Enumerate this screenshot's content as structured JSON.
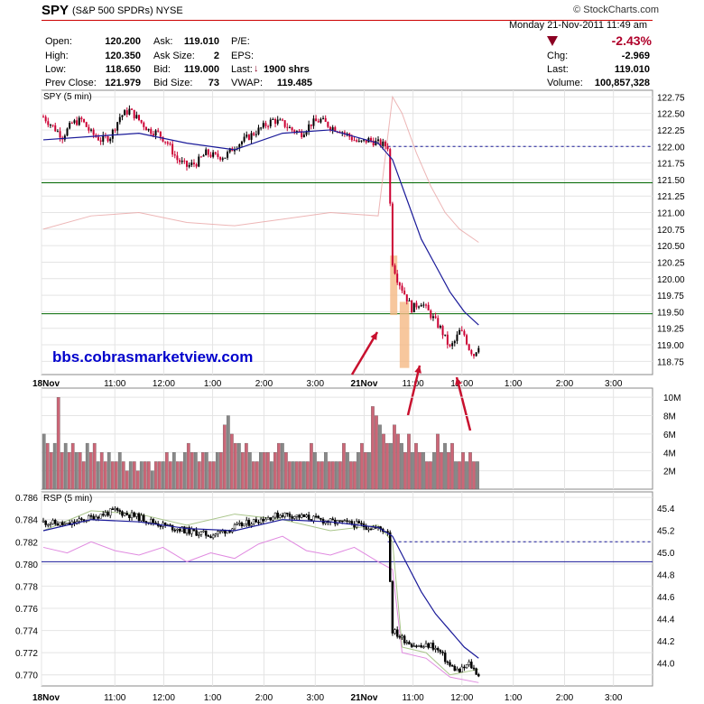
{
  "header": {
    "symbol": "SPY",
    "description": "(S&P 500 SPDRs)",
    "exchange": "NYSE",
    "brand": "© StockCharts.com",
    "date": "Monday  21-Nov-2011  11:49 am",
    "change_pct": "-2.43%",
    "quotes": {
      "open": {
        "label": "Open:",
        "value": "120.200"
      },
      "high": {
        "label": "High:",
        "value": "120.350"
      },
      "low": {
        "label": "Low:",
        "value": "118.650"
      },
      "prev_close": {
        "label": "Prev Close:",
        "value": "121.979"
      },
      "ask": {
        "label": "Ask:",
        "value": "119.010"
      },
      "ask_size": {
        "label": "Ask Size:",
        "value": "2"
      },
      "bid": {
        "label": "Bid:",
        "value": "119.000"
      },
      "bid_size": {
        "label": "Bid Size:",
        "value": "73"
      },
      "pe": {
        "label": "P/E:",
        "value": ""
      },
      "eps": {
        "label": "EPS:",
        "value": ""
      },
      "last_trade": {
        "label": "Last:",
        "value": "1900 shrs"
      },
      "vwap": {
        "label": "VWAP:",
        "value": "119.485"
      },
      "chg": {
        "label": "Chg:",
        "value": "-2.969"
      },
      "last": {
        "label": "Last:",
        "value": "119.010"
      },
      "volume": {
        "label": "Volume:",
        "value": "100,857,328"
      }
    }
  },
  "watermark": "bbs.cobrasmarketview.com",
  "colors": {
    "down": "#cc0033",
    "up": "#000000",
    "ma": "#1a1a99",
    "reference": "#006600",
    "highlight": "#f5b985",
    "arrow": "#c8102e"
  },
  "chart_data": [
    {
      "type": "candlestick",
      "title": "SPY (5 min)",
      "x_ticks": [
        "18Nov",
        "11:00",
        "12:00",
        "1:00",
        "2:00",
        "3:00",
        "21Nov",
        "11:00",
        "12:00",
        "1:00",
        "2:00",
        "3:00"
      ],
      "y_ticks": [
        "122.75",
        "122.50",
        "122.25",
        "122.00",
        "121.75",
        "121.50",
        "121.25",
        "121.00",
        "120.75",
        "120.50",
        "120.25",
        "120.00",
        "119.75",
        "119.50",
        "119.25",
        "119.00",
        "118.75"
      ],
      "ylim": [
        118.55,
        122.85
      ],
      "reference_lines": [
        122.0,
        121.45,
        119.47
      ],
      "close_path": [
        [
          0,
          122.45
        ],
        [
          4,
          122.3
        ],
        [
          8,
          122.15
        ],
        [
          12,
          122.35
        ],
        [
          16,
          122.4
        ],
        [
          20,
          122.2
        ],
        [
          24,
          122.1
        ],
        [
          28,
          122.15
        ],
        [
          32,
          122.45
        ],
        [
          36,
          122.55
        ],
        [
          40,
          122.4
        ],
        [
          44,
          122.25
        ],
        [
          48,
          122.2
        ],
        [
          52,
          122.05
        ],
        [
          56,
          121.8
        ],
        [
          60,
          121.7
        ],
        [
          64,
          121.75
        ],
        [
          68,
          121.9
        ],
        [
          72,
          121.85
        ],
        [
          76,
          121.85
        ],
        [
          80,
          122.0
        ],
        [
          84,
          122.1
        ],
        [
          88,
          122.2
        ],
        [
          92,
          122.3
        ],
        [
          96,
          122.4
        ],
        [
          100,
          122.35
        ],
        [
          104,
          122.25
        ],
        [
          108,
          122.2
        ],
        [
          112,
          122.35
        ],
        [
          116,
          122.4
        ],
        [
          120,
          122.3
        ],
        [
          124,
          122.25
        ],
        [
          128,
          122.15
        ],
        [
          132,
          122.05
        ],
        [
          136,
          122.1
        ],
        [
          140,
          122.05
        ],
        [
          144,
          122.0
        ],
        [
          146,
          120.25
        ],
        [
          148,
          120.0
        ],
        [
          150,
          119.85
        ],
        [
          152,
          119.7
        ],
        [
          154,
          119.55
        ],
        [
          156,
          119.6
        ],
        [
          158,
          119.65
        ],
        [
          160,
          119.55
        ],
        [
          162,
          119.45
        ],
        [
          164,
          119.35
        ],
        [
          166,
          119.25
        ],
        [
          168,
          119.1
        ],
        [
          170,
          118.95
        ],
        [
          172,
          119.05
        ],
        [
          174,
          119.2
        ],
        [
          176,
          119.15
        ],
        [
          178,
          118.95
        ],
        [
          180,
          118.85
        ],
        [
          182,
          119.0
        ]
      ],
      "ma_path": [
        [
          0,
          122.1
        ],
        [
          20,
          122.15
        ],
        [
          40,
          122.2
        ],
        [
          60,
          122.05
        ],
        [
          80,
          121.95
        ],
        [
          100,
          122.2
        ],
        [
          120,
          122.25
        ],
        [
          140,
          122.05
        ],
        [
          146,
          121.8
        ],
        [
          152,
          121.2
        ],
        [
          158,
          120.6
        ],
        [
          164,
          120.2
        ],
        [
          170,
          119.8
        ],
        [
          176,
          119.5
        ],
        [
          182,
          119.3
        ]
      ],
      "secondary_path": [
        [
          0,
          120.75
        ],
        [
          20,
          120.95
        ],
        [
          40,
          121.0
        ],
        [
          60,
          120.85
        ],
        [
          80,
          120.8
        ],
        [
          100,
          120.9
        ],
        [
          120,
          121.0
        ],
        [
          140,
          120.95
        ],
        [
          146,
          122.75
        ],
        [
          150,
          122.5
        ],
        [
          156,
          121.9
        ],
        [
          162,
          121.4
        ],
        [
          168,
          121.0
        ],
        [
          174,
          120.75
        ],
        [
          182,
          120.55
        ]
      ],
      "highlight_ranges": [
        [
          145,
          148,
          120.35,
          119.45
        ],
        [
          149,
          153,
          119.65,
          118.65
        ]
      ]
    },
    {
      "type": "bar",
      "title": "",
      "y_ticks": [
        "10M",
        "8M",
        "6M",
        "4M",
        "2M"
      ],
      "ylim": [
        0,
        11
      ],
      "values": [
        6,
        5,
        4,
        5,
        10,
        4,
        5,
        4,
        5,
        4,
        4,
        3,
        5,
        4,
        5,
        3,
        4,
        3,
        4,
        3,
        3,
        4,
        3,
        2,
        3,
        3,
        2,
        3,
        3,
        3,
        2,
        3,
        3,
        3,
        4,
        3,
        4,
        3,
        3,
        4,
        5,
        4,
        4,
        3,
        4,
        4,
        3,
        3,
        4,
        4,
        7,
        8,
        6,
        5,
        5,
        4,
        5,
        4,
        3,
        3,
        4,
        4,
        4,
        3,
        4,
        5,
        5,
        4,
        3,
        3,
        3,
        3,
        3,
        3,
        5,
        4,
        3,
        3,
        4,
        3,
        3,
        3,
        3,
        5,
        4,
        3,
        3,
        4,
        5,
        4,
        4,
        9,
        8,
        7,
        6,
        5,
        5,
        7,
        6,
        5,
        4,
        6,
        4,
        5,
        4,
        4,
        3,
        3,
        4,
        6,
        4,
        5,
        4,
        5,
        3,
        3,
        4,
        3,
        4,
        3,
        3
      ]
    },
    {
      "type": "candlestick",
      "title": "RSP (5 min)",
      "left_ticks": [
        "0.786",
        "0.784",
        "0.782",
        "0.780",
        "0.778",
        "0.776",
        "0.774",
        "0.772",
        "0.770"
      ],
      "right_ticks": [
        "45.4",
        "45.2",
        "45.0",
        "44.8",
        "44.6",
        "44.4",
        "44.2",
        "44.0"
      ],
      "ylim": [
        0.769,
        0.7865
      ],
      "reference_lines": [
        0.782,
        0.7802
      ],
      "close_path": [
        [
          0,
          0.7838
        ],
        [
          10,
          0.7835
        ],
        [
          20,
          0.7842
        ],
        [
          30,
          0.7848
        ],
        [
          40,
          0.7842
        ],
        [
          50,
          0.7835
        ],
        [
          60,
          0.783
        ],
        [
          70,
          0.7826
        ],
        [
          80,
          0.7833
        ],
        [
          90,
          0.784
        ],
        [
          100,
          0.7845
        ],
        [
          110,
          0.7842
        ],
        [
          120,
          0.7838
        ],
        [
          130,
          0.7836
        ],
        [
          140,
          0.7832
        ],
        [
          144,
          0.783
        ],
        [
          146,
          0.774
        ],
        [
          150,
          0.7733
        ],
        [
          154,
          0.7728
        ],
        [
          158,
          0.7725
        ],
        [
          162,
          0.7727
        ],
        [
          166,
          0.772
        ],
        [
          170,
          0.7708
        ],
        [
          174,
          0.7703
        ],
        [
          178,
          0.771
        ],
        [
          182,
          0.77
        ]
      ],
      "ma_path": [
        [
          0,
          0.783
        ],
        [
          20,
          0.784
        ],
        [
          40,
          0.7838
        ],
        [
          60,
          0.7832
        ],
        [
          80,
          0.783
        ],
        [
          100,
          0.784
        ],
        [
          120,
          0.7838
        ],
        [
          140,
          0.7833
        ],
        [
          146,
          0.7825
        ],
        [
          152,
          0.78
        ],
        [
          158,
          0.7775
        ],
        [
          164,
          0.7755
        ],
        [
          170,
          0.774
        ],
        [
          176,
          0.7725
        ],
        [
          182,
          0.7715
        ]
      ],
      "pink_path": [
        [
          0,
          0.7815
        ],
        [
          10,
          0.781
        ],
        [
          20,
          0.782
        ],
        [
          30,
          0.7812
        ],
        [
          40,
          0.7808
        ],
        [
          50,
          0.7815
        ],
        [
          60,
          0.7802
        ],
        [
          70,
          0.781
        ],
        [
          80,
          0.7805
        ],
        [
          90,
          0.7818
        ],
        [
          100,
          0.7825
        ],
        [
          110,
          0.7812
        ],
        [
          120,
          0.7808
        ],
        [
          130,
          0.7815
        ],
        [
          140,
          0.7802
        ],
        [
          146,
          0.7795
        ],
        [
          150,
          0.772
        ],
        [
          160,
          0.7715
        ],
        [
          170,
          0.7698
        ],
        [
          182,
          0.7693
        ]
      ],
      "green_path": [
        [
          0,
          0.783
        ],
        [
          20,
          0.7848
        ],
        [
          40,
          0.7845
        ],
        [
          60,
          0.7835
        ],
        [
          80,
          0.7845
        ],
        [
          100,
          0.784
        ],
        [
          120,
          0.783
        ],
        [
          140,
          0.7835
        ],
        [
          146,
          0.782
        ],
        [
          150,
          0.7725
        ],
        [
          160,
          0.772
        ],
        [
          170,
          0.77
        ],
        [
          182,
          0.7705
        ]
      ]
    }
  ]
}
